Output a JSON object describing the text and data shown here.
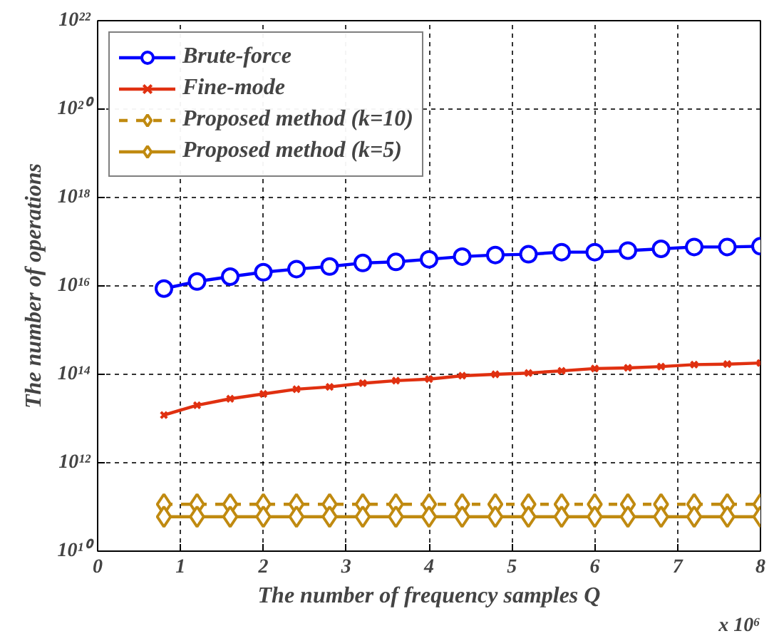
{
  "chart_data": {
    "type": "line",
    "xlabel": "The number of frequency samples Q",
    "ylabel": "The number of operations",
    "annotations": [
      "x 10⁶"
    ],
    "x": [
      0.8,
      1.2,
      1.6,
      2.0,
      2.4,
      2.8,
      3.2,
      3.6,
      4.0,
      4.4,
      4.8,
      5.2,
      5.6,
      6.0,
      6.4,
      6.8,
      7.2,
      7.6,
      8.0
    ],
    "series": [
      {
        "name": "Brute-force",
        "color": "#0000ff",
        "marker": "circle",
        "line_style": "solid",
        "values": [
          8700000000000000.0,
          1.26e+16,
          1.62e+16,
          2.04e+16,
          2.4e+16,
          2.75e+16,
          3.3e+16,
          3.5e+16,
          4e+16,
          4.6e+16,
          5e+16,
          5.2e+16,
          5.8e+16,
          5.8e+16,
          6.3e+16,
          6.9e+16,
          7.6e+16,
          7.6e+16,
          7.9e+16
        ]
      },
      {
        "name": "Fine-mode",
        "color": "#e03010",
        "marker": "cross",
        "line_style": "solid",
        "values": [
          12000000000000.0,
          20000000000000.0,
          28000000000000.0,
          36000000000000.0,
          46000000000000.0,
          52000000000000.0,
          63000000000000.0,
          72000000000000.0,
          78000000000000.0,
          93000000000000.0,
          100000000000000.0,
          107000000000000.0,
          120000000000000.0,
          135000000000000.0,
          140000000000000.0,
          150000000000000.0,
          166000000000000.0,
          170000000000000.0,
          180000000000000.0
        ]
      },
      {
        "name": "Proposed method (k=10)",
        "color": "#c08a10",
        "marker": "diamond",
        "line_style": "dashed",
        "values": [
          115000000000.0,
          115000000000.0,
          115000000000.0,
          115000000000.0,
          115000000000.0,
          115000000000.0,
          115000000000.0,
          115000000000.0,
          115000000000.0,
          115000000000.0,
          115000000000.0,
          115000000000.0,
          115000000000.0,
          115000000000.0,
          115000000000.0,
          115000000000.0,
          115000000000.0,
          115000000000.0,
          115000000000.0
        ]
      },
      {
        "name": "Proposed method (k=5)",
        "color": "#c08a10",
        "marker": "diamond",
        "line_style": "solid",
        "values": [
          60000000000.0,
          60000000000.0,
          60000000000.0,
          60000000000.0,
          60000000000.0,
          60000000000.0,
          60000000000.0,
          60000000000.0,
          60000000000.0,
          60000000000.0,
          60000000000.0,
          60000000000.0,
          60000000000.0,
          60000000000.0,
          60000000000.0,
          60000000000.0,
          60000000000.0,
          60000000000.0,
          60000000000.0
        ]
      }
    ],
    "log": "y",
    "xlim": [
      0,
      8
    ],
    "xticks": [
      0,
      1,
      2,
      3,
      4,
      5,
      6,
      7,
      8
    ],
    "ylim": [
      10000000000.0,
      1e+22
    ],
    "yticks": [
      {
        "value": 10000000000.0,
        "label": "10¹⁰"
      },
      {
        "value": 1000000000000.0,
        "label": "10¹²"
      },
      {
        "value": 100000000000000.0,
        "label": "10¹⁴"
      },
      {
        "value": 1e+16,
        "label": "10¹⁶"
      },
      {
        "value": 1e+18,
        "label": "10¹⁸"
      },
      {
        "value": 1e+20,
        "label": "10²⁰"
      },
      {
        "value": 1e+22,
        "label": "10²²"
      }
    ],
    "grid": true,
    "legend": "top left"
  }
}
